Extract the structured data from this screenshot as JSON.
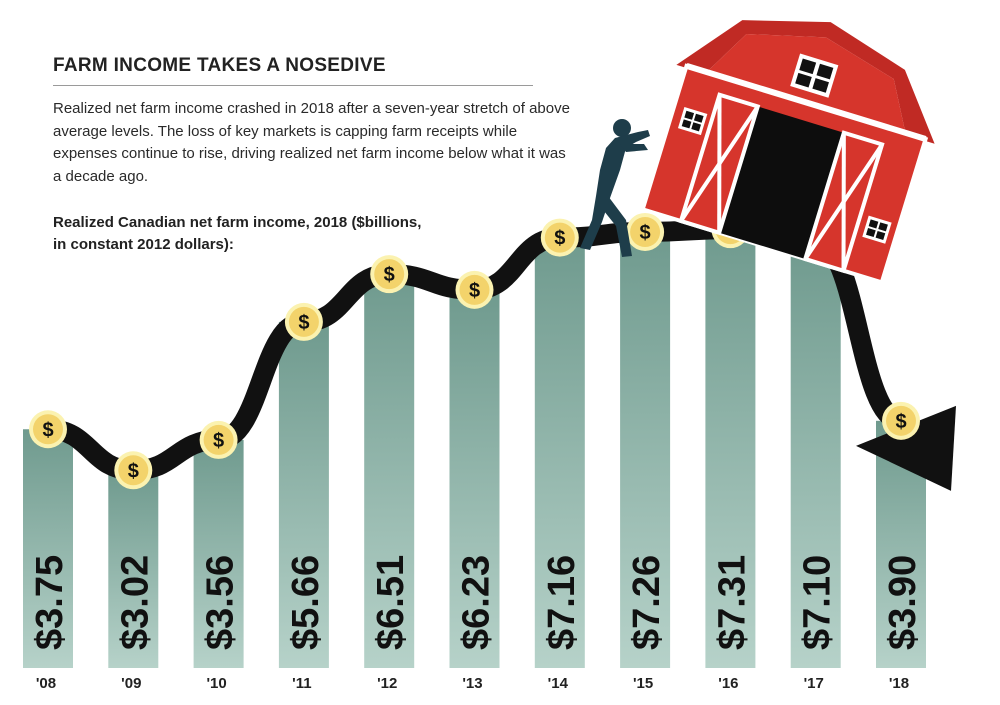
{
  "title": "FARM INCOME TAKES A NOSEDIVE",
  "description": "Realized net farm income crashed in 2018 after a seven-year stretch of above average levels. The loss of key markets is capping farm receipts while expenses continue to rise, driving realized net farm income below what it was a decade ago.",
  "subtitle": "Realized Canadian net farm income, 2018 ($billions, in constant 2012 dollars):",
  "colors": {
    "bar_top": "#7fa79b",
    "bar_bottom": "#9fc0b6",
    "line": "#111111",
    "coin": "#f3d36b",
    "coin_ring": "#fbf2b0",
    "barn_red": "#d6352c",
    "label": "#111111"
  },
  "icons": [
    "dollar-coin-icon",
    "barn-icon",
    "farmer-icon",
    "arrowhead-icon"
  ],
  "coin_symbol": "$",
  "chart_data": {
    "type": "bar",
    "categories": [
      "'08",
      "'09",
      "'10",
      "'11",
      "'12",
      "'13",
      "'14",
      "'15",
      "'16",
      "'17",
      "'18"
    ],
    "values": [
      3.75,
      3.02,
      3.56,
      5.66,
      6.51,
      6.23,
      7.16,
      7.26,
      7.31,
      7.1,
      3.9
    ],
    "value_labels": [
      "$3.75",
      "$3.02",
      "$3.56",
      "$5.66",
      "$6.51",
      "$6.23",
      "$7.16",
      "$7.26",
      "$7.31",
      "$7.10",
      "$3.90"
    ],
    "title": "FARM INCOME TAKES A NOSEDIVE",
    "ylabel": "$billions, in constant 2012 dollars",
    "ylim": [
      0,
      8
    ],
    "grid": false,
    "legend": "none",
    "overlay": "trend-line-with-arrow"
  }
}
